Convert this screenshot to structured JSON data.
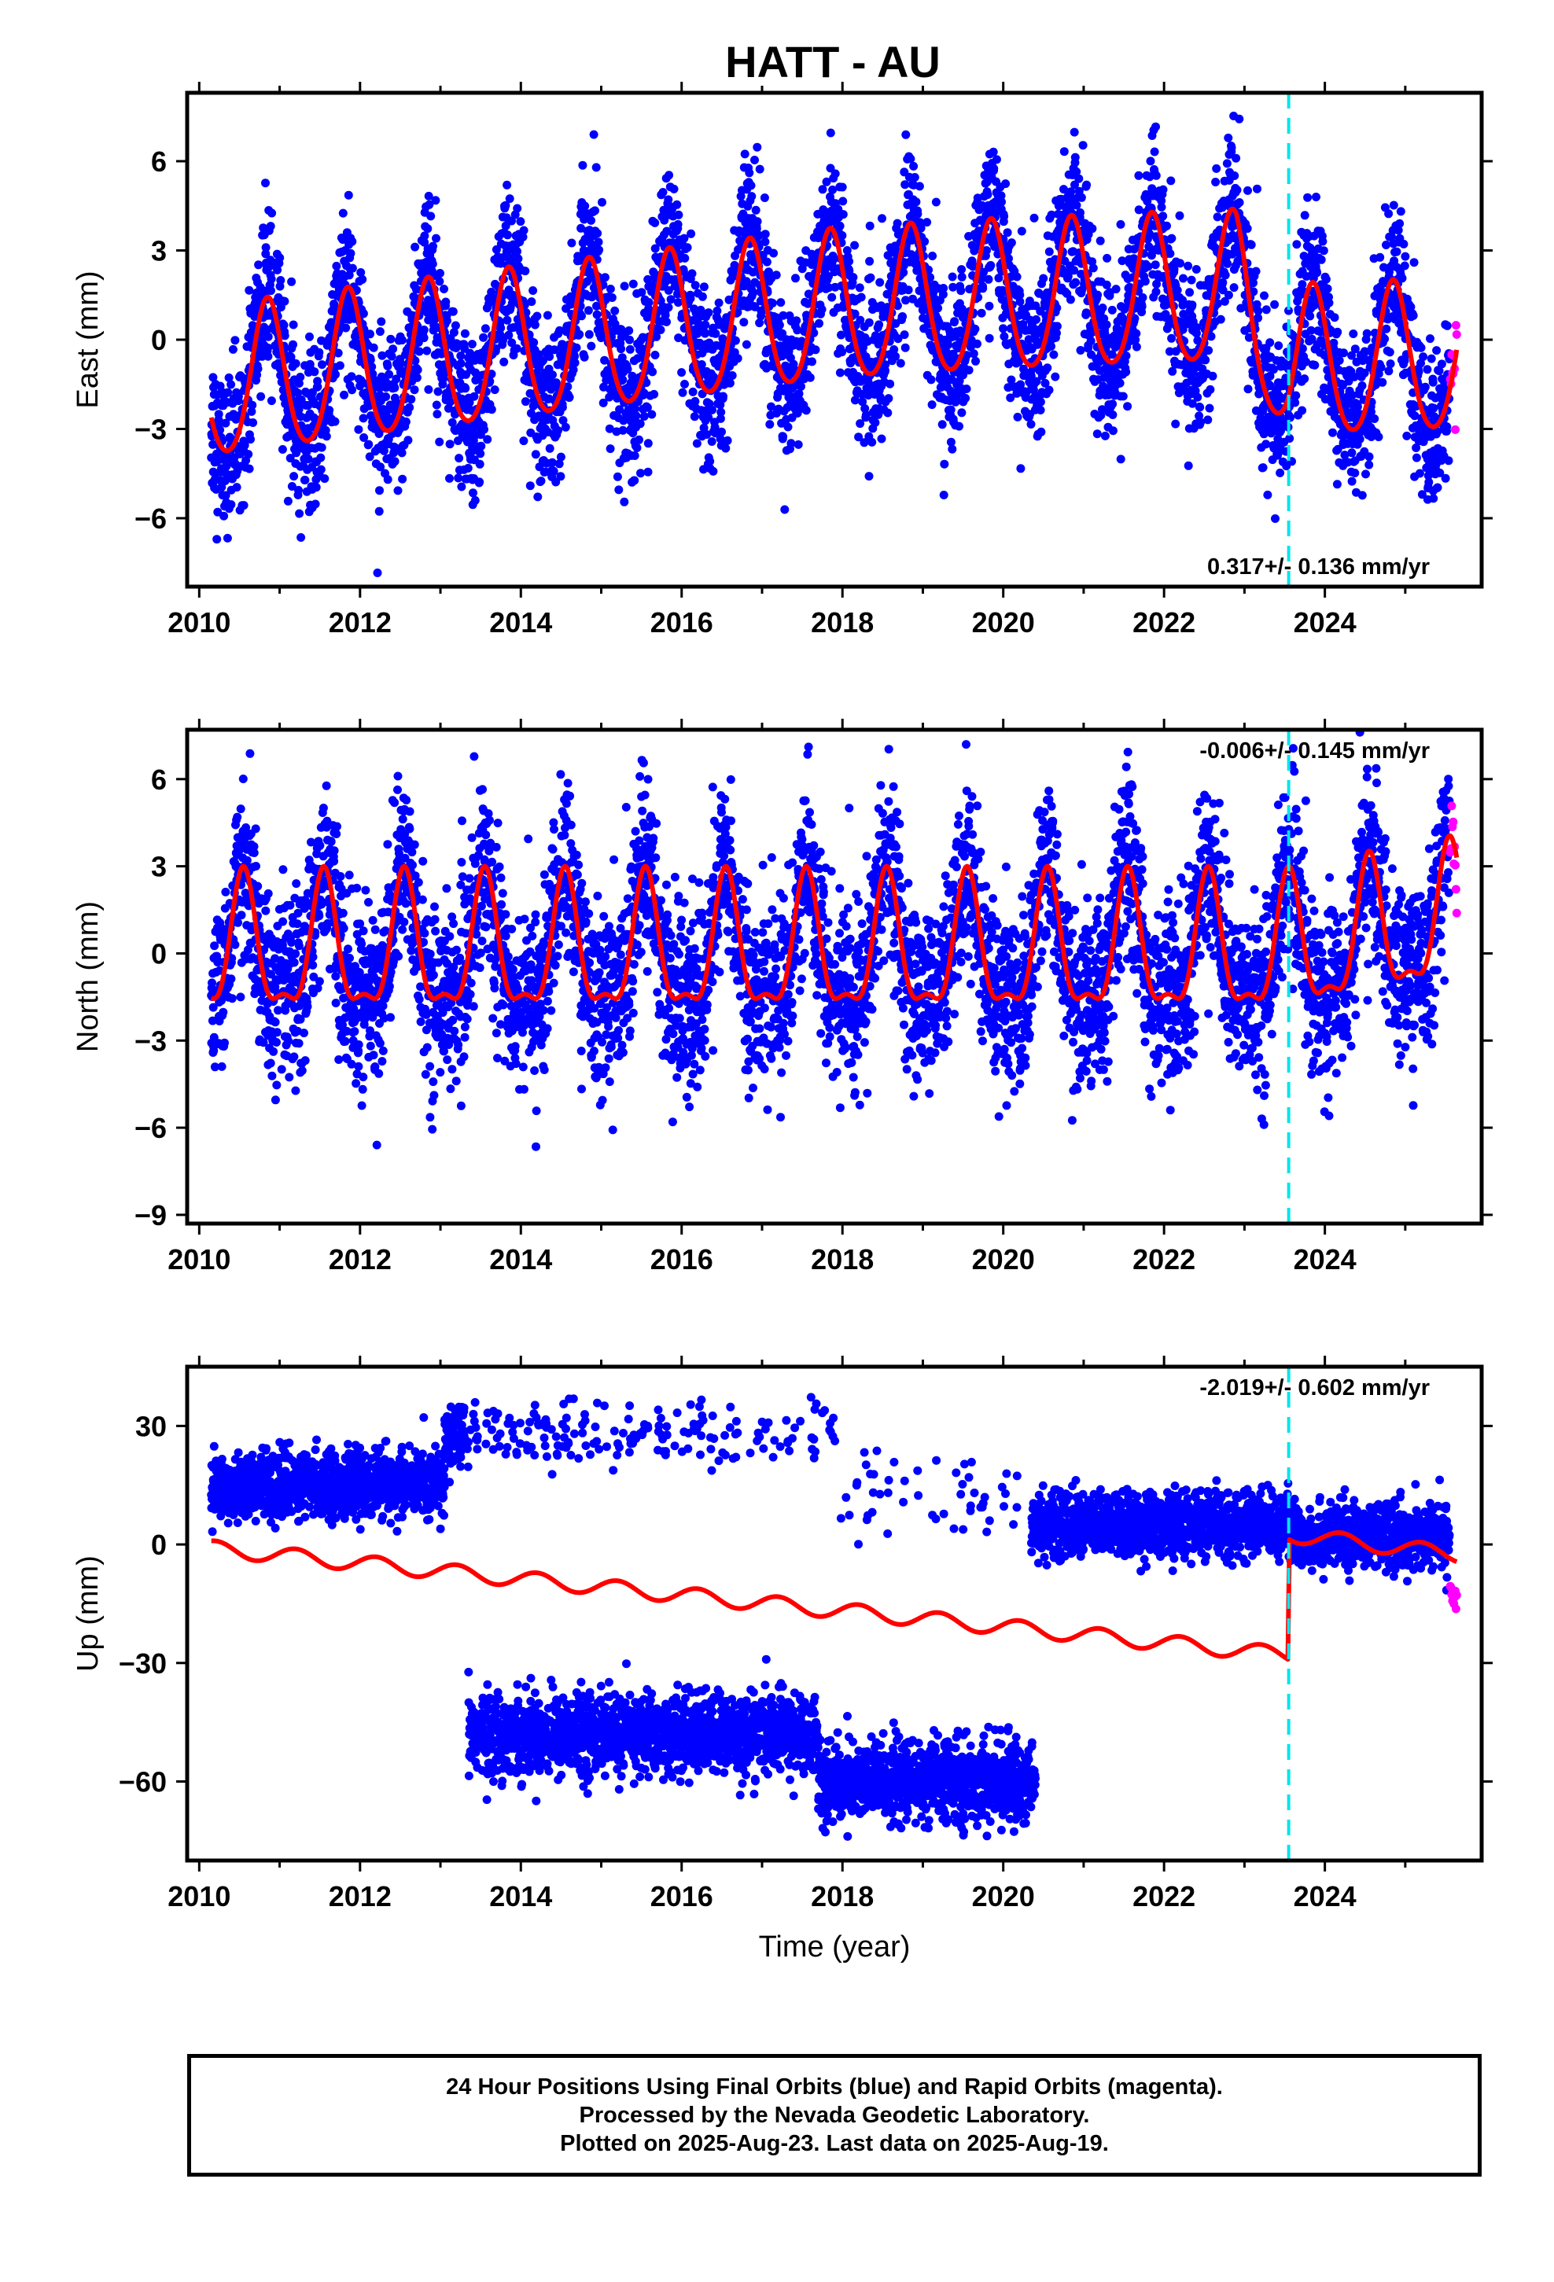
{
  "title": "HATT - AU",
  "footer": {
    "line1": "24 Hour Positions Using Final Orbits (blue) and Rapid Orbits (magenta).",
    "line2": "Processed by the Nevada Geodetic Laboratory.",
    "line3": "Plotted on 2025-Aug-23. Last data on 2025-Aug-19."
  },
  "colors": {
    "final_orbits": "#0000ff",
    "rapid_orbits": "#ff00ff",
    "model": "#ff0000",
    "antenna_change": "#00e5ee"
  },
  "chart_data": [
    {
      "type": "scatter",
      "component": "east",
      "ylabel": "East (mm)",
      "xlabel": "",
      "xlim": [
        2009.85,
        2025.95
      ],
      "ylim": [
        -8.3,
        8.3
      ],
      "xticks": [
        2010,
        2012,
        2014,
        2016,
        2018,
        2020,
        2022,
        2024
      ],
      "yticks": [
        -6,
        -3,
        0,
        3,
        6
      ],
      "rate_label": "0.317+/- 0.136 mm/yr",
      "rate_position": "bottom-right",
      "antenna_change": [
        2023.55
      ],
      "data_span": [
        2010.15,
        2025.55
      ],
      "rapid_span": [
        2025.56,
        2025.64
      ],
      "model": {
        "trend": [
          [
            2010.15,
            -1.6
          ],
          [
            2014.0,
            -0.3
          ],
          [
            2018.0,
            1.0
          ],
          [
            2020.0,
            1.3
          ],
          [
            2022.9,
            1.6
          ],
          [
            2023.55,
            -0.9
          ],
          [
            2025.64,
            -0.7
          ]
        ],
        "annual_amplitude": 2.5,
        "annual_peak": 0.85,
        "semiannual_amplitude": 0.3,
        "scatter_std": 1.3
      },
      "series": [
        {
          "name": "Final Orbits",
          "marker": "dot"
        },
        {
          "name": "Rapid Orbits",
          "marker": "dot"
        }
      ]
    },
    {
      "type": "scatter",
      "component": "north",
      "ylabel": "North (mm)",
      "xlabel": "",
      "xlim": [
        2009.85,
        2025.95
      ],
      "ylim": [
        -9.3,
        7.7
      ],
      "xticks": [
        2010,
        2012,
        2014,
        2016,
        2018,
        2020,
        2022,
        2024
      ],
      "yticks": [
        -9,
        -6,
        -3,
        0,
        3,
        6
      ],
      "rate_label": "-0.006+/- 0.145 mm/yr",
      "rate_position": "top-right",
      "antenna_change": [
        2023.55
      ],
      "data_span": [
        2010.15,
        2025.55
      ],
      "rapid_span": [
        2025.56,
        2025.64
      ],
      "model": {
        "trend": [
          [
            2010.15,
            0.0
          ],
          [
            2023.55,
            0.0
          ],
          [
            2025.64,
            1.1
          ]
        ],
        "annual_amplitude": 2.2,
        "annual_peak": 0.55,
        "semiannual_amplitude": 0.8,
        "scatter_std": 1.5
      },
      "series": [
        {
          "name": "Final Orbits",
          "marker": "dot"
        },
        {
          "name": "Rapid Orbits",
          "marker": "dot"
        }
      ]
    },
    {
      "type": "scatter",
      "component": "up",
      "ylabel": "Up (mm)",
      "xlabel": "Time (year)",
      "xlim": [
        2009.85,
        2025.95
      ],
      "ylim": [
        -80,
        45
      ],
      "xticks": [
        2010,
        2012,
        2014,
        2016,
        2018,
        2020,
        2022,
        2024
      ],
      "yticks": [
        -60,
        -30,
        0,
        30
      ],
      "rate_label": "-2.019+/- 0.602 mm/yr",
      "rate_position": "top-right",
      "antenna_change": [
        2023.55
      ],
      "clusters": [
        {
          "span": [
            2010.15,
            2013.05
          ],
          "y": 15,
          "std": 4,
          "density": 1.0
        },
        {
          "span": [
            2013.05,
            2013.3
          ],
          "y": 27,
          "std": 4,
          "density": 1.0
        },
        {
          "span": [
            2013.3,
            2017.9
          ],
          "y": 28,
          "std": 4,
          "density": 0.12
        },
        {
          "span": [
            2017.9,
            2020.3
          ],
          "y": 12,
          "std": 6,
          "density": 0.06
        },
        {
          "span": [
            2013.35,
            2017.7
          ],
          "y": -48,
          "std": 5,
          "density": 1.0
        },
        {
          "span": [
            2017.7,
            2020.4
          ],
          "y": -60,
          "std": 5,
          "density": 1.0
        },
        {
          "span": [
            2020.35,
            2023.55
          ],
          "y": 5,
          "std": 4,
          "density": 1.0
        },
        {
          "span": [
            2023.55,
            2025.55
          ],
          "y": 2,
          "std": 4,
          "density": 1.0
        }
      ],
      "rapid_span": [
        2025.56,
        2025.64
      ],
      "rapid_level": -13,
      "model": {
        "trend": [
          [
            2010.15,
            -1.0
          ],
          [
            2023.54,
            -28.0
          ],
          [
            2023.56,
            2.5
          ],
          [
            2025.64,
            -2.5
          ]
        ],
        "annual_amplitude": 2.0,
        "annual_peak": 0.2,
        "semiannual_amplitude": 0.0
      },
      "series": [
        {
          "name": "Final Orbits",
          "marker": "dot"
        },
        {
          "name": "Rapid Orbits",
          "marker": "dot"
        }
      ]
    }
  ]
}
